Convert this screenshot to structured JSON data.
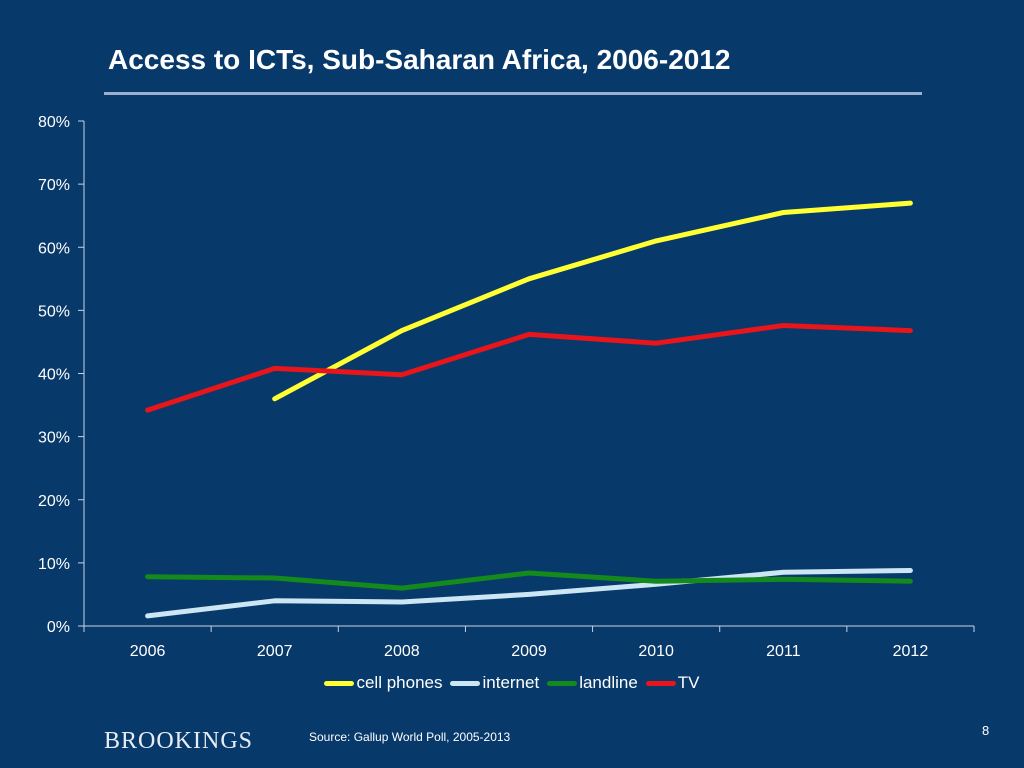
{
  "slide": {
    "brand": "BROOKINGS",
    "source": "Source: Gallup World Poll, 2005-2013",
    "page_number": "8"
  },
  "chart_data": {
    "type": "line",
    "title": "Access to ICTs, Sub-Saharan Africa, 2006-2012",
    "categories": [
      "2006",
      "2007",
      "2008",
      "2009",
      "2010",
      "2011",
      "2012"
    ],
    "y_ticks": [
      "0%",
      "10%",
      "20%",
      "30%",
      "40%",
      "50%",
      "60%",
      "70%",
      "80%"
    ],
    "ylim": [
      0,
      80
    ],
    "grid": false,
    "legend_position": "bottom",
    "series": [
      {
        "name": "cell phones",
        "color": "#ffff33",
        "values": [
          null,
          36,
          46.8,
          55,
          61,
          65.5,
          67
        ]
      },
      {
        "name": "internet",
        "color": "#cde6f3",
        "values": [
          1.6,
          4,
          3.8,
          5,
          6.6,
          8.5,
          8.8
        ]
      },
      {
        "name": "landline",
        "color": "#138a1b",
        "values": [
          7.8,
          7.6,
          6,
          8.4,
          7.1,
          7.4,
          7.1
        ]
      },
      {
        "name": "TV",
        "color": "#e8151b",
        "values": [
          34.2,
          40.8,
          39.8,
          46.2,
          44.8,
          47.6,
          46.8
        ]
      }
    ]
  }
}
